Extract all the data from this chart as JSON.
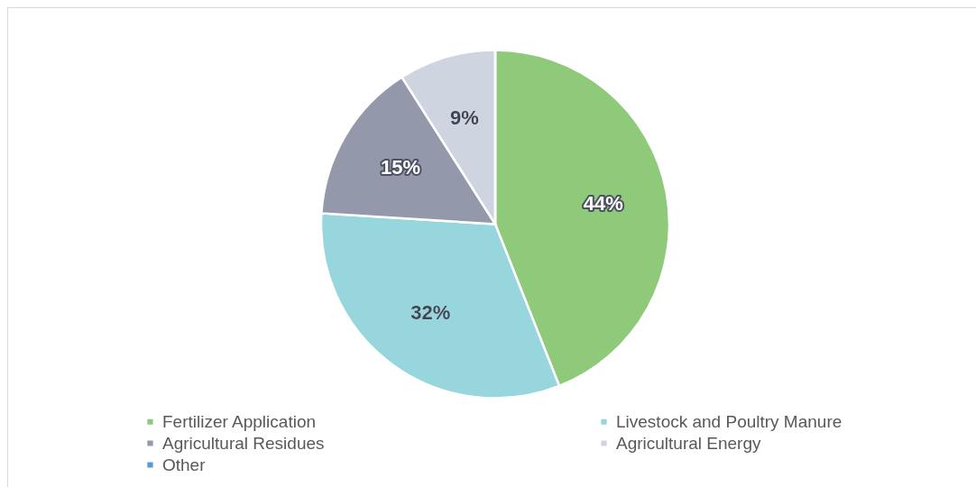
{
  "chart_data": {
    "type": "pie",
    "categories": [
      "Fertilizer Application",
      "Livestock and Poultry Manure",
      "Agricultural Residues",
      "Agricultural Energy",
      "Other"
    ],
    "values": [
      44,
      32,
      15,
      9,
      0
    ],
    "colors": [
      "#8fca7a",
      "#98d6de",
      "#9498ab",
      "#ced4e0",
      "#5b9bd5"
    ],
    "value_labels": [
      "44%",
      "32%",
      "15%",
      "9%",
      null
    ],
    "legend": "bottom"
  }
}
